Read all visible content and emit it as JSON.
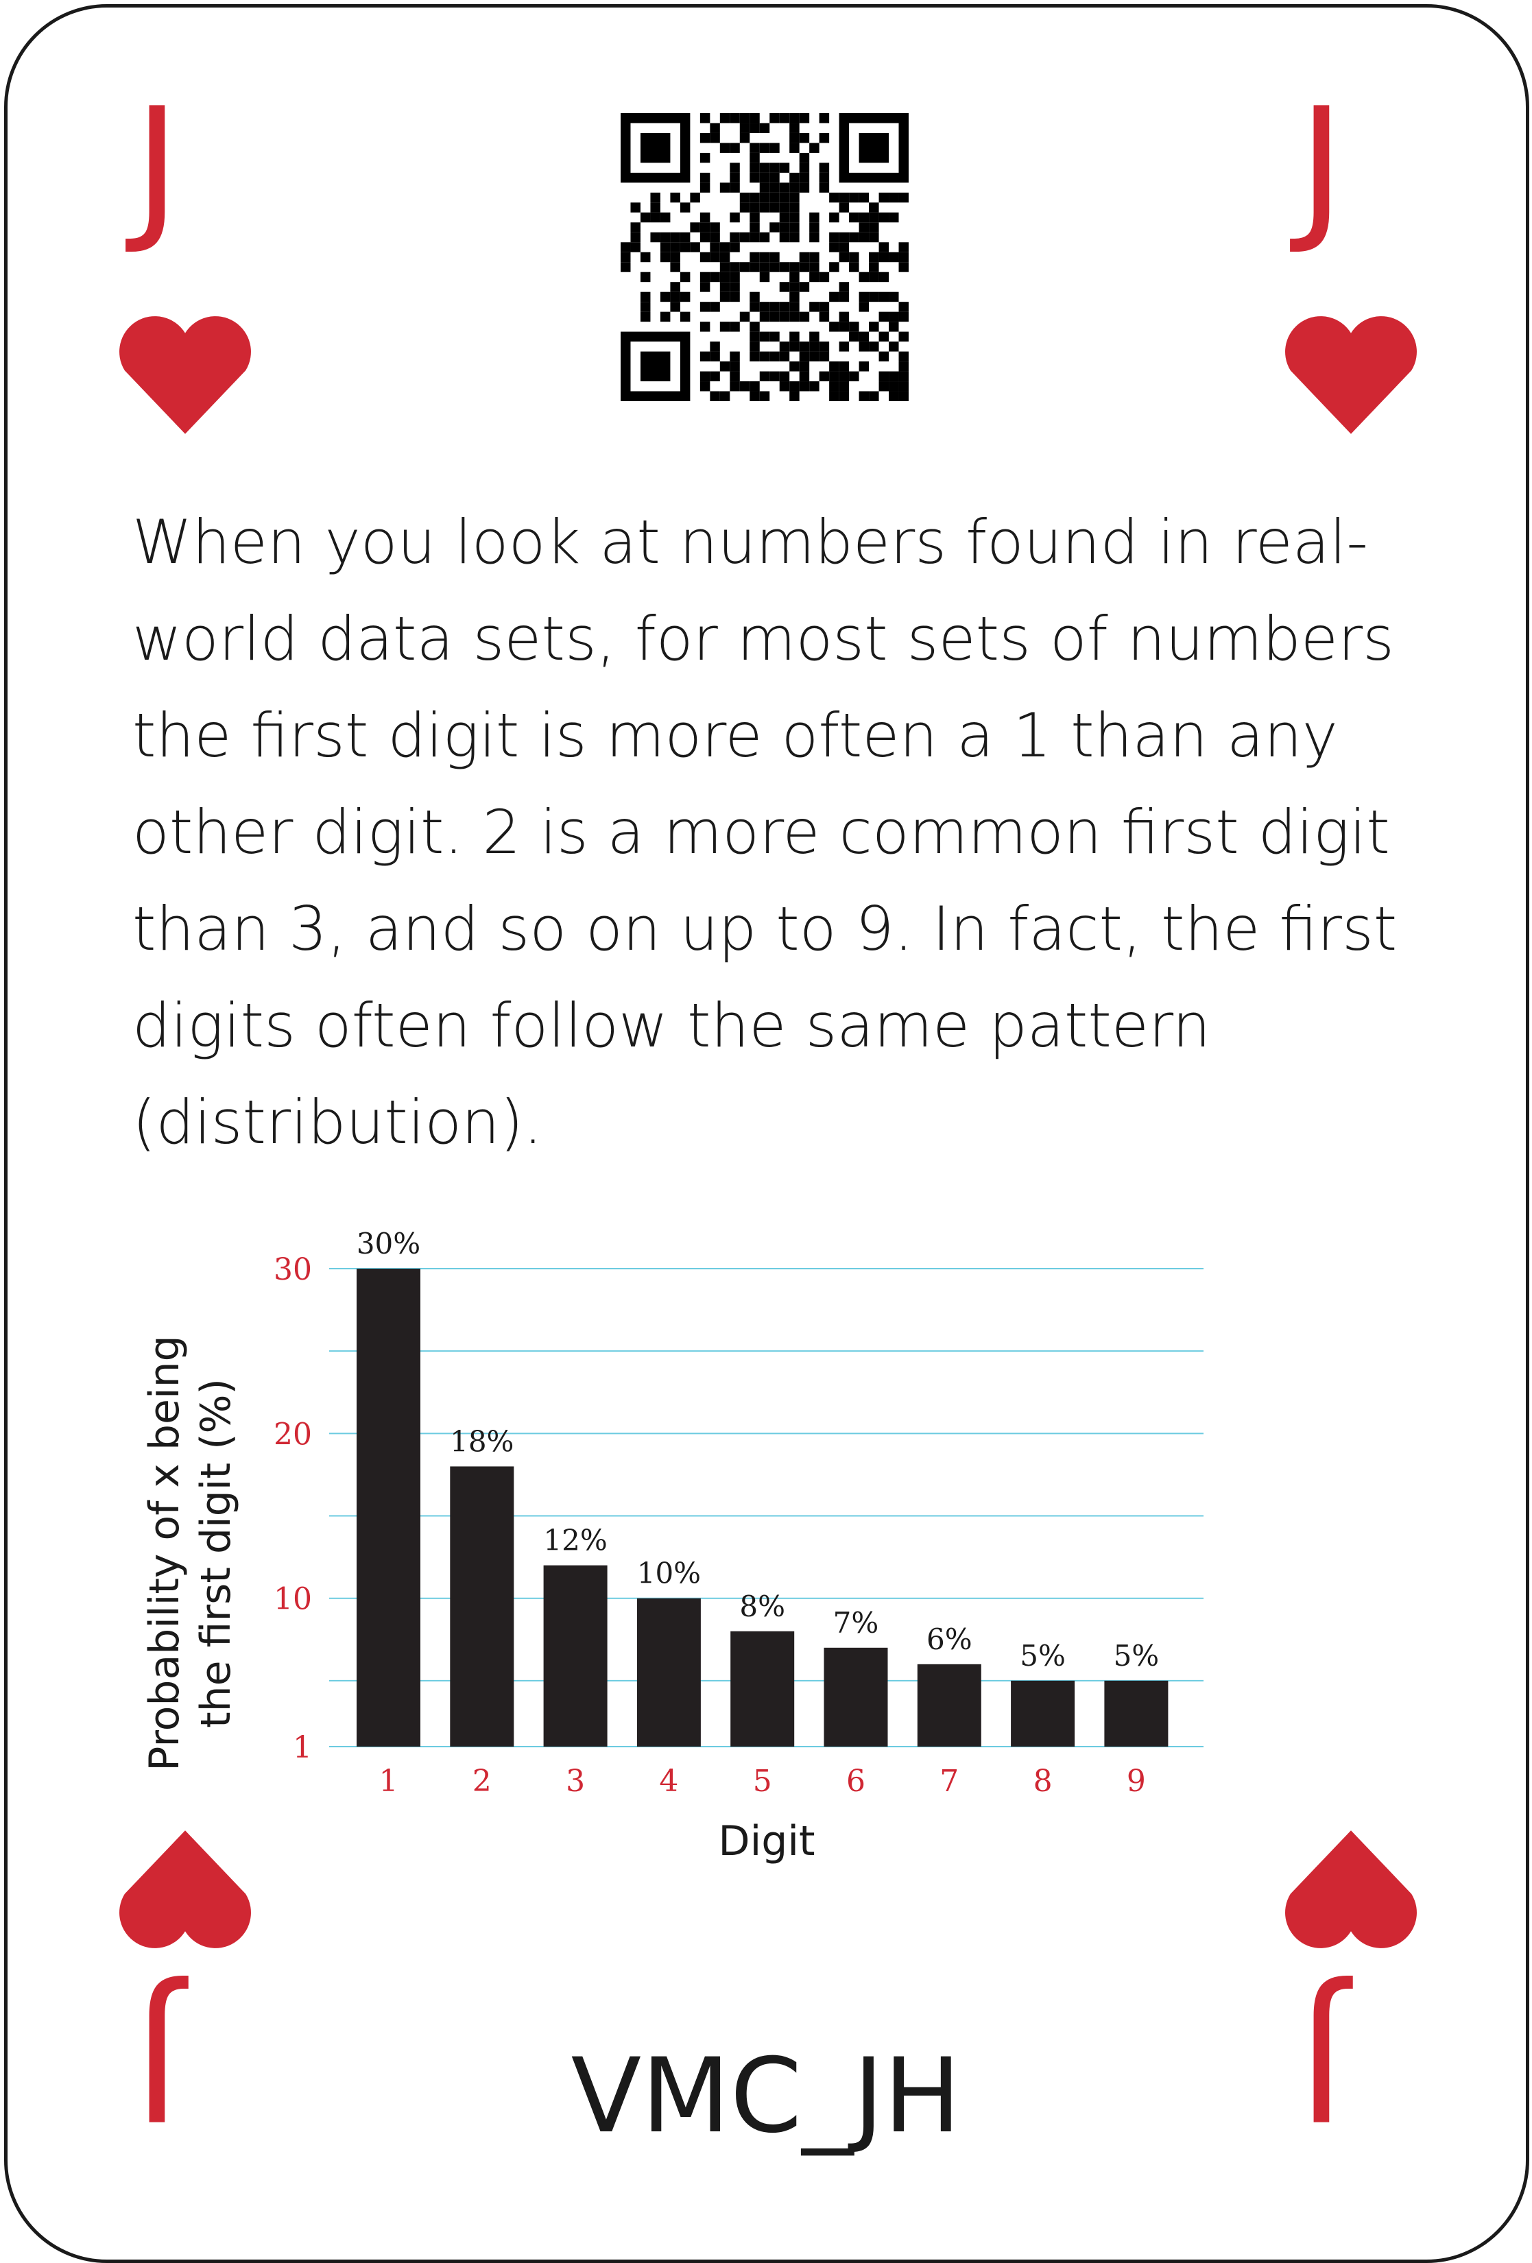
{
  "card": {
    "rank": "J",
    "suit_icon": "heart-icon",
    "accent_color": "#d02733",
    "code": "VMC_JH",
    "qr_icon": "qr-code-icon"
  },
  "description": "When you look at numbers found in real-world data sets, for most sets of numbers the first digit is more often a 1 than any other digit. 2 is a more common first digit than 3, and so on up to 9. In fact, the first digits often follow the same pattern (distribution).",
  "chart_data": {
    "type": "bar",
    "categories": [
      "1",
      "2",
      "3",
      "4",
      "5",
      "6",
      "7",
      "8",
      "9"
    ],
    "values": [
      30,
      18,
      12,
      10,
      8,
      7,
      6,
      5,
      5
    ],
    "data_labels": [
      "30%",
      "18%",
      "12%",
      "10%",
      "8%",
      "7%",
      "6%",
      "5%",
      "5%"
    ],
    "yticks": [
      "1",
      "10",
      "20",
      "30"
    ],
    "ytick_values": [
      1,
      10,
      20,
      30
    ],
    "ylim": [
      1,
      30
    ],
    "grid": true,
    "xlabel": "Digit",
    "ylabel_line1": "Probability of x being",
    "ylabel_line2": "the first digit (%)",
    "bar_color": "#231f20",
    "grid_color": "#6ccbe0",
    "tick_color": "#d02733"
  }
}
